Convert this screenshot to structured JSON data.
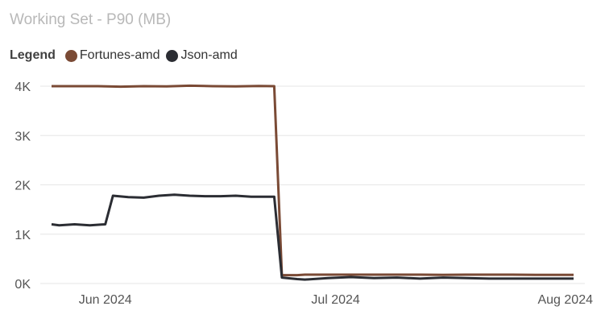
{
  "title": "Working Set - P90 (MB)",
  "legend": {
    "title": "Legend",
    "items": [
      {
        "label": "Fortunes-amd",
        "color": "#7a4a35"
      },
      {
        "label": "Json-amd",
        "color": "#2b2d33"
      }
    ]
  },
  "chart_data": {
    "type": "line",
    "title": "Working Set - P90 (MB)",
    "xlabel": "",
    "ylabel": "",
    "ylim": [
      0,
      4000
    ],
    "yticks": [
      0,
      1000,
      2000,
      3000,
      4000
    ],
    "ytick_labels": [
      "0K",
      "1K",
      "2K",
      "3K",
      "4K"
    ],
    "xlim": [
      "2024-05-25",
      "2024-08-01"
    ],
    "xticks": [
      "2024-06-01",
      "2024-07-01",
      "2024-08-01"
    ],
    "xtick_labels": [
      "Jun 2024",
      "Jul 2024",
      "Aug 2024"
    ],
    "grid": true,
    "legend_position": "top-left",
    "series": [
      {
        "name": "Fortunes-amd",
        "color": "#7a4a35",
        "x": [
          "2024-05-25",
          "2024-05-28",
          "2024-05-31",
          "2024-06-03",
          "2024-06-06",
          "2024-06-09",
          "2024-06-12",
          "2024-06-15",
          "2024-06-18",
          "2024-06-21",
          "2024-06-23",
          "2024-06-24",
          "2024-06-26",
          "2024-06-27",
          "2024-06-30",
          "2024-07-03",
          "2024-07-06",
          "2024-07-09",
          "2024-07-12",
          "2024-07-15",
          "2024-07-18",
          "2024-07-21",
          "2024-07-24",
          "2024-07-27",
          "2024-07-30",
          "2024-08-01"
        ],
        "y": [
          4000,
          4000,
          4000,
          3990,
          4000,
          3995,
          4010,
          4000,
          3995,
          4005,
          4000,
          170,
          170,
          180,
          180,
          180,
          180,
          180,
          180,
          175,
          180,
          180,
          180,
          175,
          175,
          175
        ]
      },
      {
        "name": "Json-amd",
        "color": "#2b2d33",
        "x": [
          "2024-05-25",
          "2024-05-26",
          "2024-05-28",
          "2024-05-30",
          "2024-06-01",
          "2024-06-02",
          "2024-06-04",
          "2024-06-06",
          "2024-06-08",
          "2024-06-10",
          "2024-06-12",
          "2024-06-14",
          "2024-06-16",
          "2024-06-18",
          "2024-06-20",
          "2024-06-23",
          "2024-06-24",
          "2024-06-26",
          "2024-06-27",
          "2024-06-30",
          "2024-07-03",
          "2024-07-06",
          "2024-07-09",
          "2024-07-12",
          "2024-07-15",
          "2024-07-18",
          "2024-07-21",
          "2024-07-24",
          "2024-07-27",
          "2024-07-30",
          "2024-08-01"
        ],
        "y": [
          1200,
          1180,
          1200,
          1180,
          1200,
          1780,
          1750,
          1740,
          1780,
          1800,
          1780,
          1770,
          1770,
          1780,
          1760,
          1760,
          120,
          90,
          80,
          110,
          130,
          110,
          120,
          100,
          120,
          110,
          100,
          100,
          100,
          100,
          100
        ]
      }
    ]
  }
}
